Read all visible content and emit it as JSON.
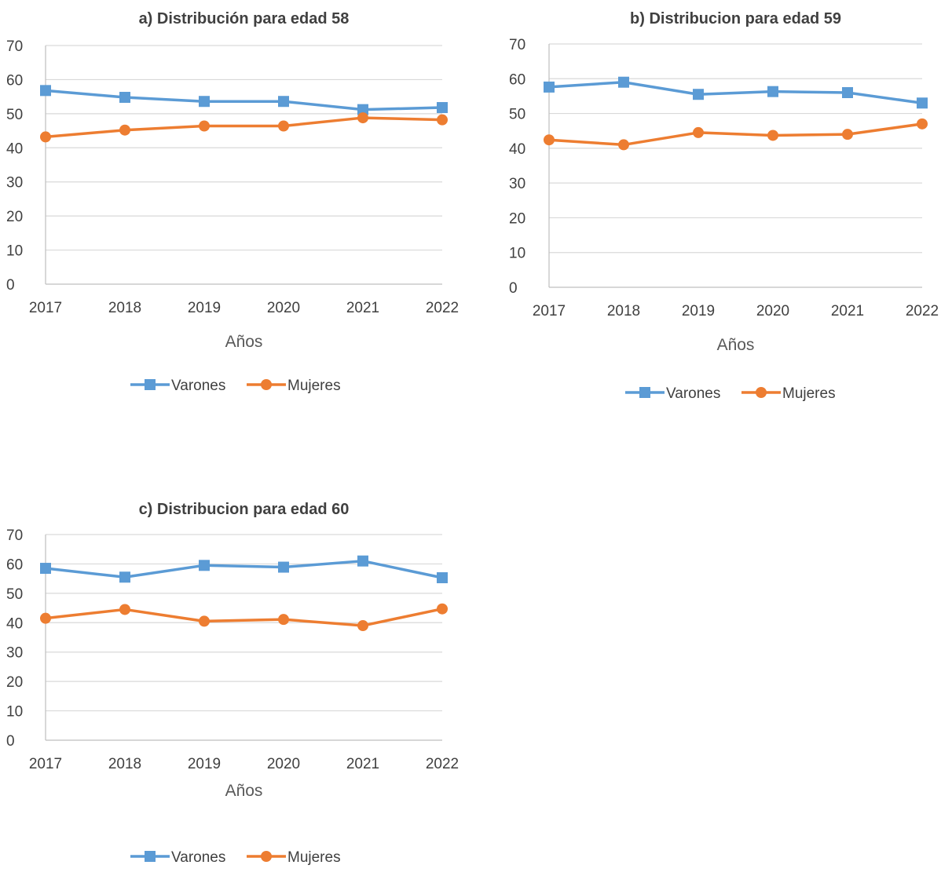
{
  "colors": {
    "varones": "#5B9BD5",
    "mujeres": "#ED7D31",
    "grid": "#D9D9D9",
    "axis": "#BFBFBF"
  },
  "chart_data": [
    {
      "type": "line",
      "title": "a) Distribución para edad 58",
      "xlabel": "Años",
      "ylabel": "",
      "ylim": [
        0,
        70
      ],
      "yticks": [
        "0",
        "10",
        "20",
        "30",
        "40",
        "50",
        "60",
        "70"
      ],
      "categories": [
        "2017",
        "2018",
        "2019",
        "2020",
        "2021",
        "2022"
      ],
      "grid": true,
      "legend_position": "bottom",
      "series": [
        {
          "name": "Varones",
          "marker": "square",
          "values": [
            56.8,
            54.8,
            53.6,
            53.6,
            51.2,
            51.8
          ]
        },
        {
          "name": "Mujeres",
          "marker": "circle",
          "values": [
            43.2,
            45.2,
            46.4,
            46.4,
            48.8,
            48.2
          ]
        }
      ]
    },
    {
      "type": "line",
      "title": "b) Distribucion para edad 59",
      "xlabel": "Años",
      "ylabel": "",
      "ylim": [
        0,
        70
      ],
      "yticks": [
        "0",
        "10",
        "20",
        "30",
        "40",
        "50",
        "60",
        "70"
      ],
      "categories": [
        "2017",
        "2018",
        "2019",
        "2020",
        "2021",
        "2022"
      ],
      "grid": true,
      "legend_position": "bottom",
      "series": [
        {
          "name": "Varones",
          "marker": "square",
          "values": [
            57.6,
            59.0,
            55.5,
            56.3,
            56.0,
            53.0
          ]
        },
        {
          "name": "Mujeres",
          "marker": "circle",
          "values": [
            42.4,
            41.0,
            44.5,
            43.7,
            44.0,
            47.0
          ]
        }
      ]
    },
    {
      "type": "line",
      "title": "c) Distribucion para edad 60",
      "xlabel": "Años",
      "ylabel": "",
      "ylim": [
        0,
        70
      ],
      "yticks": [
        "0",
        "10",
        "20",
        "30",
        "40",
        "50",
        "60",
        "70"
      ],
      "categories": [
        "2017",
        "2018",
        "2019",
        "2020",
        "2021",
        "2022"
      ],
      "grid": true,
      "legend_position": "bottom",
      "series": [
        {
          "name": "Varones",
          "marker": "square",
          "values": [
            58.5,
            55.5,
            59.5,
            58.9,
            61.0,
            55.3
          ]
        },
        {
          "name": "Mujeres",
          "marker": "circle",
          "values": [
            41.5,
            44.5,
            40.5,
            41.1,
            39.0,
            44.7
          ]
        }
      ]
    }
  ]
}
